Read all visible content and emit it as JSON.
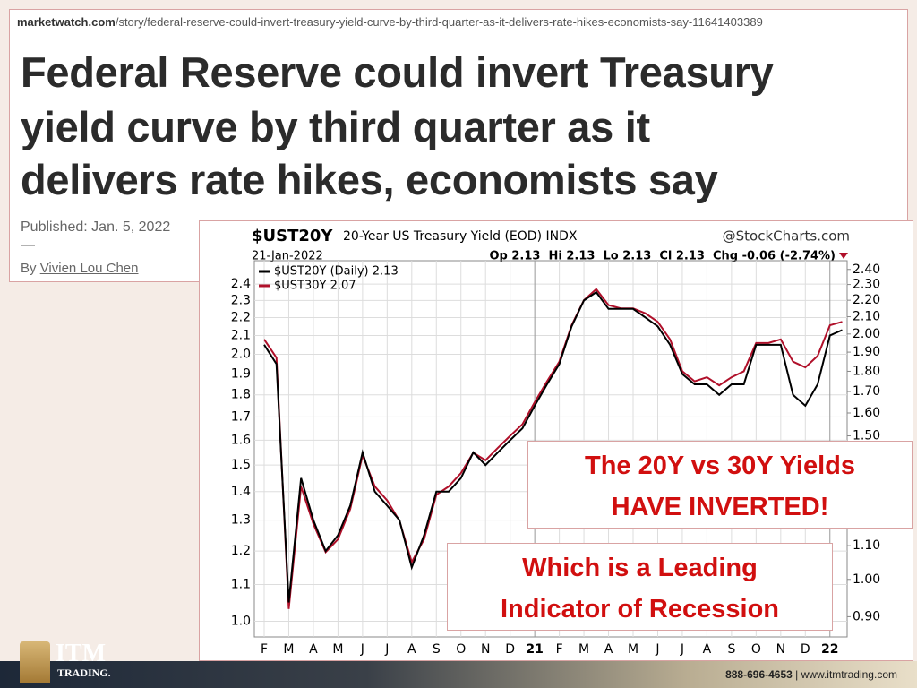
{
  "article": {
    "url_domain": "marketwatch.com",
    "url_path": "/story/federal-reserve-could-invert-treasury-yield-curve-by-third-quarter-as-it-delivers-rate-hikes-economists-say-11641403389",
    "title_lines": [
      "Federal Reserve could invert Treasury",
      "yield curve by third quarter as it",
      "delivers rate hikes, economists say"
    ],
    "published": "Published: Jan. 5, 2022",
    "separator": "—",
    "byline_prefix": "By",
    "author": "Vivien Lou Chen"
  },
  "chart_data": {
    "type": "line",
    "symbol": "$UST20Y",
    "title": "20-Year US Treasury Yield (EOD) INDX",
    "source": "@StockCharts.com",
    "date": "21-Jan-2022",
    "quote": "Op 2.13  Hi 2.13  Lo 2.13  Cl 2.13  Chg -0.06 (-2.74%)",
    "x": [
      0,
      0.5,
      1,
      1.5,
      2,
      2.5,
      3,
      3.5,
      4,
      4.5,
      5,
      5.5,
      6,
      6.5,
      7,
      7.5,
      8,
      8.5,
      9,
      9.5,
      10,
      10.5,
      11,
      11.5,
      12,
      12.5,
      13,
      13.5,
      14,
      14.5,
      15,
      15.5,
      16,
      16.5,
      17,
      17.5,
      18,
      18.5,
      19,
      19.5,
      20,
      20.5,
      21,
      21.5,
      22,
      22.5,
      23,
      23.5
    ],
    "xlim": [
      -0.4,
      23.7
    ],
    "xticks": [
      {
        "value": 0,
        "label": "F"
      },
      {
        "value": 1,
        "label": "M"
      },
      {
        "value": 2,
        "label": "A"
      },
      {
        "value": 3,
        "label": "M"
      },
      {
        "value": 4,
        "label": "J"
      },
      {
        "value": 5,
        "label": "J"
      },
      {
        "value": 6,
        "label": "A"
      },
      {
        "value": 7,
        "label": "S"
      },
      {
        "value": 8,
        "label": "O"
      },
      {
        "value": 9,
        "label": "N"
      },
      {
        "value": 10,
        "label": "D"
      },
      {
        "value": 11,
        "label": "21"
      },
      {
        "value": 12,
        "label": "F"
      },
      {
        "value": 13,
        "label": "M"
      },
      {
        "value": 14,
        "label": "A"
      },
      {
        "value": 15,
        "label": "M"
      },
      {
        "value": 16,
        "label": "J"
      },
      {
        "value": 17,
        "label": "J"
      },
      {
        "value": 18,
        "label": "A"
      },
      {
        "value": 19,
        "label": "S"
      },
      {
        "value": 20,
        "label": "O"
      },
      {
        "value": 21,
        "label": "N"
      },
      {
        "value": 22,
        "label": "D"
      },
      {
        "value": 23,
        "label": "22"
      }
    ],
    "ylim": [
      0.96,
      2.55
    ],
    "log_scale": true,
    "grid": true,
    "yticks": [
      {
        "value": 1,
        "label": "1.0"
      },
      1.1,
      1.2,
      1.3,
      1.4,
      1.5,
      1.6,
      1.7,
      1.8,
      1.9,
      {
        "value": 2,
        "label": "2.0"
      },
      2.1,
      2.2,
      2.3,
      2.4
    ],
    "y2lim": [
      0.85,
      2.46
    ],
    "y2ticks": [
      {
        "value": 0.9,
        "label": "0.90"
      },
      {
        "value": 1,
        "label": "1.00"
      },
      {
        "value": 1.1,
        "label": "1.10"
      },
      {
        "value": 1.5,
        "label": "1.50"
      },
      {
        "value": 1.6,
        "label": "1.60"
      },
      {
        "value": 1.7,
        "label": "1.70"
      },
      {
        "value": 1.8,
        "label": "1.80"
      },
      {
        "value": 1.9,
        "label": "1.90"
      },
      {
        "value": 2,
        "label": "2.00"
      },
      {
        "value": 2.1,
        "label": "2.10"
      },
      {
        "value": 2.2,
        "label": "2.20"
      },
      {
        "value": 2.3,
        "label": "2.30"
      },
      {
        "value": 2.4,
        "label": "2.40"
      }
    ],
    "series": [
      {
        "name": "$UST20Y (Daily) 2.13",
        "color": "#000000",
        "values": [
          2.05,
          1.95,
          1.05,
          1.45,
          1.3,
          1.2,
          1.25,
          1.35,
          1.55,
          1.4,
          1.35,
          1.3,
          1.15,
          1.25,
          1.4,
          1.4,
          1.45,
          1.55,
          1.5,
          1.55,
          1.6,
          1.65,
          1.75,
          1.85,
          1.95,
          2.15,
          2.3,
          2.35,
          2.25,
          2.25,
          2.25,
          2.2,
          2.15,
          2.05,
          1.9,
          1.85,
          1.85,
          1.8,
          1.85,
          1.85,
          2.05,
          2.05,
          2.05,
          1.8,
          1.75,
          1.85,
          2.1,
          2.13
        ]
      },
      {
        "name": "$UST30Y 2.07",
        "color": "#b0102a",
        "axis": "y2",
        "values": [
          1.97,
          1.87,
          0.92,
          1.3,
          1.17,
          1.08,
          1.12,
          1.22,
          1.42,
          1.3,
          1.25,
          1.18,
          1.05,
          1.12,
          1.27,
          1.3,
          1.35,
          1.43,
          1.4,
          1.45,
          1.5,
          1.55,
          1.65,
          1.75,
          1.85,
          2.05,
          2.2,
          2.27,
          2.17,
          2.15,
          2.15,
          2.12,
          2.07,
          1.97,
          1.8,
          1.75,
          1.77,
          1.73,
          1.77,
          1.8,
          1.95,
          1.95,
          1.97,
          1.85,
          1.82,
          1.88,
          2.05,
          2.07
        ]
      }
    ]
  },
  "callouts": [
    [
      "The 20Y vs 30Y Yields",
      "HAVE INVERTED!"
    ],
    [
      "Which is a Leading",
      "Indicator of Recession"
    ]
  ],
  "footer": {
    "logo": "ITM",
    "logo_sub": "TRADING.",
    "phone": "888-696-4653",
    "divider": "|",
    "website": "www.itmtrading.com"
  }
}
